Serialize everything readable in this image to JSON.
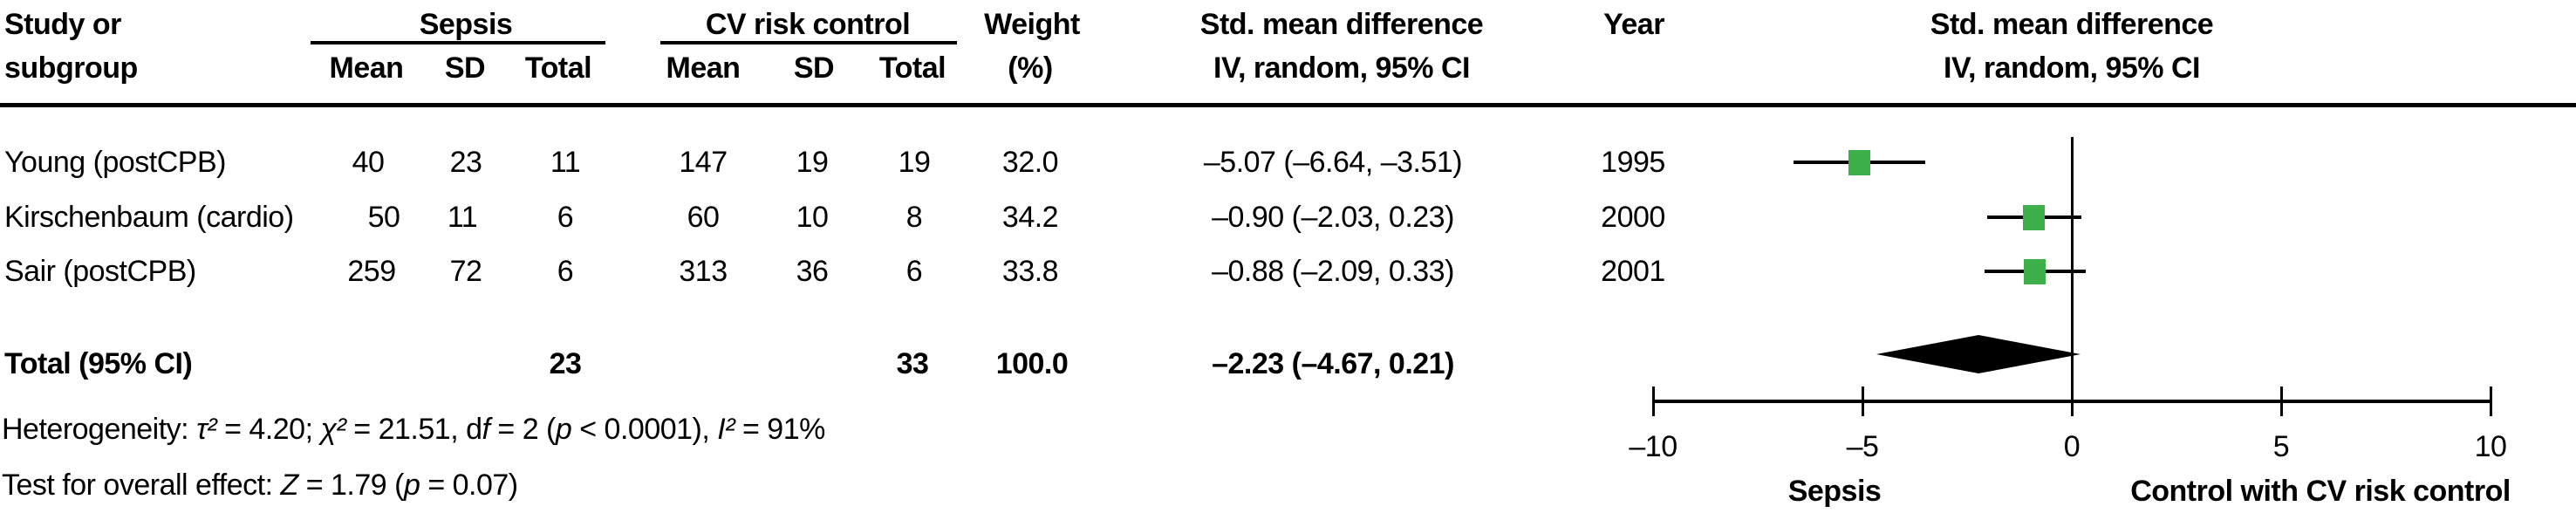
{
  "header": {
    "study_col_line1": "Study or",
    "study_col_line2": "subgroup",
    "group1_label": "Sepsis",
    "group2_label": "CV risk control",
    "mean_label": "Mean",
    "sd_label": "SD",
    "total_label": "Total",
    "weight_line1": "Weight",
    "weight_line2": "(%)",
    "smd_line1": "Std. mean difference",
    "smd_line2": "IV, random, 95% CI",
    "year_label": "Year",
    "plot_header_line1": "Std. mean difference",
    "plot_header_line2": "IV, random, 95% CI"
  },
  "chart_data": {
    "type": "forest",
    "effect_measure": "Std. mean difference, IV, random, 95% CI",
    "x_axis": {
      "min": -10,
      "max": 10,
      "ticks": [
        -10,
        -5,
        0,
        5,
        10
      ],
      "tick_labels": [
        "–10",
        "–5",
        "0",
        "5",
        "10"
      ],
      "label_left": "Sepsis",
      "label_right": "Control with CV risk control"
    },
    "studies": [
      {
        "name": "Young (postCPB)",
        "sepsis_mean": "40",
        "sepsis_sd": "23",
        "sepsis_total": "11",
        "control_mean": "147",
        "control_sd": "19",
        "control_total": "19",
        "weight": "32.0",
        "smd_text": "–5.07 (–6.64, –3.51)",
        "year": "1995",
        "est": -5.07,
        "lo": -6.64,
        "hi": -3.51
      },
      {
        "name": "Kirschenbaum (cardio)",
        "sepsis_mean": "50",
        "sepsis_sd": "11",
        "sepsis_total": "6",
        "control_mean": "60",
        "control_sd": "10",
        "control_total": "8",
        "weight": "34.2",
        "smd_text": "–0.90 (–2.03, 0.23)",
        "year": "2000",
        "est": -0.9,
        "lo": -2.03,
        "hi": 0.23
      },
      {
        "name": "Sair (postCPB)",
        "sepsis_mean": "259",
        "sepsis_sd": "72",
        "sepsis_total": "6",
        "control_mean": "313",
        "control_sd": "36",
        "control_total": "6",
        "weight": "33.8",
        "smd_text": "–0.88 (–2.09, 0.33)",
        "year": "2001",
        "est": -0.88,
        "lo": -2.09,
        "hi": 0.33
      }
    ],
    "total": {
      "label": "Total (95% CI)",
      "sepsis_total": "23",
      "control_total": "33",
      "weight": "100.0",
      "smd_text": "–2.23 (–4.67, 0.21)",
      "est": -2.23,
      "lo": -4.67,
      "hi": 0.21
    },
    "heterogeneity": "Heterogeneity: τ² = 4.20; χ² = 21.51, df = 2 (p < 0.0001), I² = 91%",
    "overall_effect": "Test for overall effect: Z = 1.79 (p = 0.07)"
  },
  "footnotes": {
    "heterogeneity_segments": [
      {
        "text": "Heterogeneity: "
      },
      {
        "text": "τ²",
        "italic": true
      },
      {
        "text": " = 4.20; "
      },
      {
        "text": "χ²",
        "italic": true
      },
      {
        "text": " = 21.51, d"
      },
      {
        "text": "f",
        "italic": true
      },
      {
        "text": " = 2 ("
      },
      {
        "text": "p",
        "italic": true
      },
      {
        "text": " < 0.0001), "
      },
      {
        "text": "I²",
        "italic": true
      },
      {
        "text": " = 91%"
      }
    ],
    "overall_effect_segments": [
      {
        "text": "Test for overall effect: "
      },
      {
        "text": "Z",
        "italic": true
      },
      {
        "text": " = 1.79 ("
      },
      {
        "text": "p",
        "italic": true
      },
      {
        "text": " = 0.07)"
      }
    ]
  },
  "colors": {
    "marker_green": "#3eb04a",
    "line_black": "#000000",
    "text_black": "#000000"
  }
}
